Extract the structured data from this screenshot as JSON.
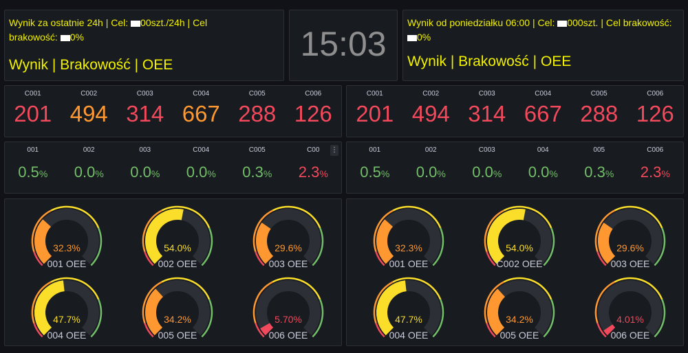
{
  "header_left": {
    "line1": "Wynik za ostatnie 24h | Cel: ",
    "line1_tail": "00szt./24h | Cel",
    "line2": "brakowość: ",
    "line2_tail": "0%",
    "big": "Wynik | Brakowość | OEE"
  },
  "clock": "15:03",
  "header_right": {
    "line1": "Wynik od poniedziałku 06:00 | Cel: ",
    "line1_tail": "000szt. | Cel brakowość:",
    "line2_tail": "0%",
    "big": "Wynik | Brakowość | OEE"
  },
  "colors": {
    "red": "#f2495c",
    "orange": "#ff9830",
    "yellow": "#fade2a",
    "green": "#73bf69",
    "track": "#2c3036"
  },
  "left_counts": [
    {
      "label": "C001",
      "value": "201",
      "color": "red"
    },
    {
      "label": "C002",
      "value": "494",
      "color": "orange"
    },
    {
      "label": "C003",
      "value": "314",
      "color": "red"
    },
    {
      "label": "C004",
      "value": "667",
      "color": "orange"
    },
    {
      "label": "C005",
      "value": "288",
      "color": "red"
    },
    {
      "label": "C006",
      "value": "126",
      "color": "red"
    }
  ],
  "right_counts": [
    {
      "label": "C001",
      "value": "201",
      "color": "red"
    },
    {
      "label": "C002",
      "value": "494",
      "color": "red"
    },
    {
      "label": "C003",
      "value": "314",
      "color": "red"
    },
    {
      "label": "C004",
      "value": "667",
      "color": "red"
    },
    {
      "label": "C005",
      "value": "288",
      "color": "red"
    },
    {
      "label": "C006",
      "value": "126",
      "color": "red"
    }
  ],
  "left_scrap": [
    {
      "label": "001",
      "value": "0.5",
      "unit": "%",
      "color": "green"
    },
    {
      "label": "002",
      "value": "0.0",
      "unit": "%",
      "color": "green"
    },
    {
      "label": "003",
      "value": "0.0",
      "unit": "%",
      "color": "green"
    },
    {
      "label": "C004",
      "value": "0.0",
      "unit": "%",
      "color": "green"
    },
    {
      "label": "C005",
      "value": "0.3",
      "unit": "%",
      "color": "green"
    },
    {
      "label": "C00",
      "value": "2.3",
      "unit": "%",
      "color": "red"
    }
  ],
  "right_scrap": [
    {
      "label": "001",
      "value": "0.5",
      "unit": "%",
      "color": "green"
    },
    {
      "label": "002",
      "value": "0.0",
      "unit": "%",
      "color": "green"
    },
    {
      "label": "C003",
      "value": "0.0",
      "unit": "%",
      "color": "green"
    },
    {
      "label": "004",
      "value": "0.0",
      "unit": "%",
      "color": "green"
    },
    {
      "label": "005",
      "value": "0.3",
      "unit": "%",
      "color": "green"
    },
    {
      "label": "C006",
      "value": "2.3",
      "unit": "%",
      "color": "red"
    }
  ],
  "left_oee": [
    {
      "name": "001 OEE",
      "text": "32.3%",
      "value": 0.323,
      "color": "orange"
    },
    {
      "name": "002 OEE",
      "text": "54.0%",
      "value": 0.54,
      "color": "yellow"
    },
    {
      "name": "003 OEE",
      "text": "29.6%",
      "value": 0.296,
      "color": "orange"
    },
    {
      "name": "004 OEE",
      "text": "47.7%",
      "value": 0.477,
      "color": "yellow"
    },
    {
      "name": "005 OEE",
      "text": "34.2%",
      "value": 0.342,
      "color": "orange"
    },
    {
      "name": "006 OEE",
      "text": "5.70%",
      "value": 0.057,
      "color": "red"
    }
  ],
  "right_oee": [
    {
      "name": "001 OEE",
      "text": "32.3%",
      "value": 0.323,
      "color": "orange"
    },
    {
      "name": "C002 OEE",
      "text": "54.0%",
      "value": 0.54,
      "color": "yellow"
    },
    {
      "name": "003 OEE",
      "text": "29.6%",
      "value": 0.296,
      "color": "orange"
    },
    {
      "name": "004 OEE",
      "text": "47.7%",
      "value": 0.477,
      "color": "yellow"
    },
    {
      "name": "005 OEE",
      "text": "34.2%",
      "value": 0.342,
      "color": "orange"
    },
    {
      "name": "006 OEE",
      "text": "4.01%",
      "value": 0.0401,
      "color": "red"
    }
  ]
}
